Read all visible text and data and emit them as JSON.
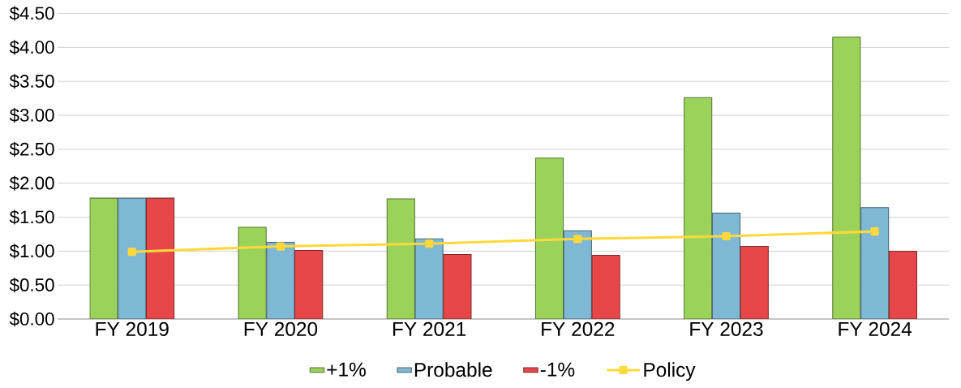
{
  "chart_data": {
    "type": "bar",
    "categories": [
      "FY 2019",
      "FY 2020",
      "FY 2021",
      "FY 2022",
      "FY 2023",
      "FY 2024"
    ],
    "series": [
      {
        "name": "+1%",
        "color": "#9bd35a",
        "values": [
          1.78,
          1.35,
          1.77,
          2.37,
          3.26,
          4.15
        ]
      },
      {
        "name": "Probable",
        "color": "#7fb8d4",
        "values": [
          1.78,
          1.13,
          1.18,
          1.3,
          1.56,
          1.64
        ]
      },
      {
        "name": "-1%",
        "color": "#e8474a",
        "values": [
          1.78,
          1.01,
          0.95,
          0.94,
          1.07,
          1.0
        ]
      },
      {
        "name": "Policy",
        "type": "line",
        "color": "#ffd83b",
        "marker": "square",
        "values": [
          0.99,
          1.07,
          1.11,
          1.18,
          1.22,
          1.29
        ]
      }
    ],
    "ylim": [
      0,
      4.5
    ],
    "yticks": [
      {
        "value": 0,
        "label": "$0.00"
      },
      {
        "value": 0.5,
        "label": "$0.50"
      },
      {
        "value": 1,
        "label": "$1.00"
      },
      {
        "value": 1.5,
        "label": "$1.50"
      },
      {
        "value": 2,
        "label": "$2.00"
      },
      {
        "value": 2.5,
        "label": "$2.50"
      },
      {
        "value": 3,
        "label": "$3.00"
      },
      {
        "value": 3.5,
        "label": "$3.50"
      },
      {
        "value": 4,
        "label": "$4.00"
      },
      {
        "value": 4.5,
        "label": "$4.50"
      }
    ],
    "grid": "y",
    "legend": "bottom"
  }
}
